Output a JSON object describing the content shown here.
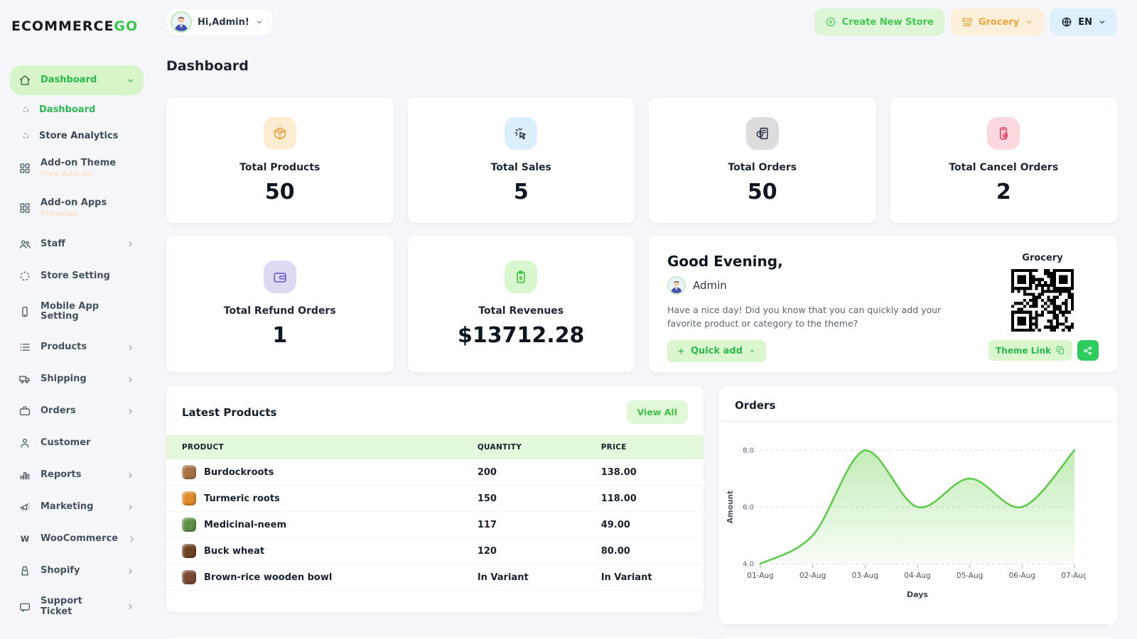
{
  "brand": {
    "name": "ECOMMERCE",
    "accent": "GO"
  },
  "topbar": {
    "user": {
      "label": "Hi,Admin!"
    },
    "actions": {
      "create_store": "Create New Store",
      "store": "Grocery",
      "language": "EN"
    }
  },
  "page": {
    "title": "Dashboard"
  },
  "sidebar": {
    "items": [
      {
        "label": "Dashboard",
        "icon": "home",
        "active": true,
        "expanded": true,
        "children": [
          {
            "label": "Dashboard",
            "active": true
          },
          {
            "label": "Store Analytics",
            "active": false
          }
        ]
      },
      {
        "label": "Add-on Theme",
        "icon": "grid",
        "badge": "Free Add-On"
      },
      {
        "label": "Add-on Apps",
        "icon": "grid",
        "badge": "Premium"
      },
      {
        "label": "Staff",
        "icon": "users",
        "chevron": true
      },
      {
        "label": "Store Setting",
        "icon": "dotsCircle"
      },
      {
        "label": "Mobile App Setting",
        "icon": "phone"
      },
      {
        "label": "Products",
        "icon": "list",
        "chevron": true
      },
      {
        "label": "Shipping",
        "icon": "truck",
        "chevron": true
      },
      {
        "label": "Orders",
        "icon": "briefcase",
        "chevron": true
      },
      {
        "label": "Customer",
        "icon": "user"
      },
      {
        "label": "Reports",
        "icon": "chart",
        "chevron": true
      },
      {
        "label": "Marketing",
        "icon": "megaphone",
        "chevron": true
      },
      {
        "label": "WooCommerce",
        "icon": "woo",
        "chevron": true
      },
      {
        "label": "Shopify",
        "icon": "shopify",
        "chevron": true
      },
      {
        "label": "Support Ticket",
        "icon": "ticket",
        "chevron": true
      }
    ]
  },
  "stats": [
    {
      "label": "Total Products",
      "value": "50",
      "icon": "package",
      "bg": "#fcecd2",
      "fg": "#e8a23a"
    },
    {
      "label": "Total Sales",
      "value": "5",
      "icon": "click",
      "bg": "#dbeffb",
      "fg": "#2b3542"
    },
    {
      "label": "Total Orders",
      "value": "50",
      "icon": "orderDoc",
      "bg": "#dcdcdf",
      "fg": "#2b3542"
    },
    {
      "label": "Total Cancel Orders",
      "value": "2",
      "icon": "phoneCancel",
      "bg": "#fbd8de",
      "fg": "#e9395f"
    },
    {
      "label": "Total Refund Orders",
      "value": "1",
      "icon": "wallet",
      "bg": "#ded9f3",
      "fg": "#6e5bd0"
    },
    {
      "label": "Total Revenues",
      "value": "$13712.28",
      "icon": "invoice",
      "bg": "#d8f7cf",
      "fg": "#3bc53b"
    }
  ],
  "greeting": {
    "title": "Good Evening,",
    "name": "Admin",
    "message": "Have a nice day! Did you know that you can quickly add your favorite product or category to the theme?",
    "quick_add": "Quick add",
    "store_label": "Grocery",
    "theme_link": "Theme Link"
  },
  "latest_products": {
    "title": "Latest Products",
    "view_all": "View All",
    "headers": [
      "PRODUCT",
      "QUANTITY",
      "PRICE"
    ],
    "rows": [
      {
        "name": "Burdockroots",
        "qty": "200",
        "price": "138.00",
        "thumb": "#a97245"
      },
      {
        "name": "Turmeric roots",
        "qty": "150",
        "price": "118.00",
        "thumb": "#e08b2d"
      },
      {
        "name": "Medicinal-neem",
        "qty": "117",
        "price": "49.00",
        "thumb": "#5f8f46"
      },
      {
        "name": "Buck wheat",
        "qty": "120",
        "price": "80.00",
        "thumb": "#6e4327"
      },
      {
        "name": "Brown-rice wooden bowl",
        "qty": "In Variant",
        "price": "In Variant",
        "thumb": "#7a4a33"
      }
    ]
  },
  "chart_data": {
    "type": "area",
    "title": "Orders",
    "x": [
      "01-Aug",
      "02-Aug",
      "03-Aug",
      "04-Aug",
      "05-Aug",
      "06-Aug",
      "07-Aug"
    ],
    "values": [
      4,
      5,
      8,
      6,
      7,
      6,
      8
    ],
    "xlabel": "Days",
    "ylabel": "Amount",
    "yticks": [
      4.0,
      6.0,
      8.0
    ],
    "ylim": [
      4,
      8.8
    ],
    "grid": "horizontal-dashed",
    "legend": "none",
    "line_color": "#5ecb4c",
    "fill_color": "#90dd7b"
  },
  "colors": {
    "accent_green": "#33c64d",
    "accent_green_bg": "#d7f5c9",
    "orange": "#f0a43a",
    "orange_bg": "#fdf0da",
    "blue_bg": "#ddf0fb"
  }
}
